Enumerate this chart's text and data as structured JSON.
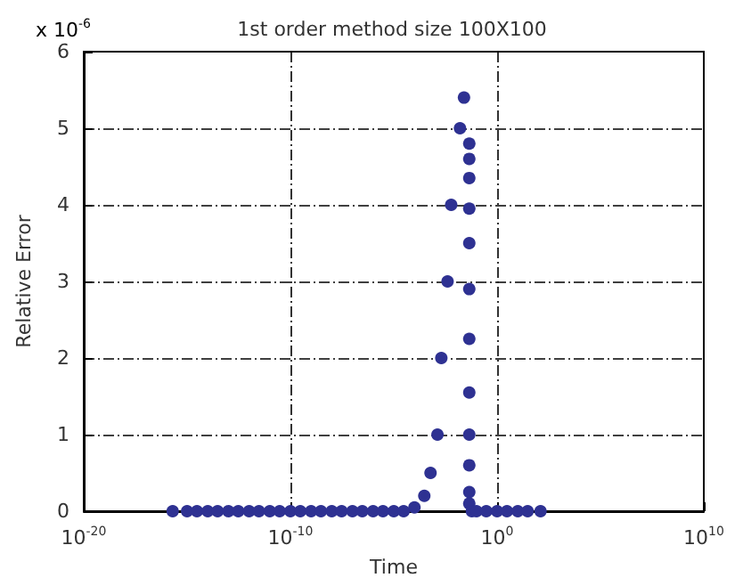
{
  "chart_data": {
    "type": "scatter",
    "title": "1st order method size 100X100",
    "xlabel": "Time",
    "ylabel": "Relative Error",
    "annotations": [
      "x 10$^{-6}$"
    ],
    "log": "x",
    "grid": true,
    "marker": "circle",
    "xlim": [
      1e-20,
      10000000000.0
    ],
    "xticks": [
      {
        "value": 1e-20,
        "label": "10$^{-20}$"
      },
      {
        "value": 1e-10,
        "label": "10$^{-10}$"
      },
      {
        "value": 1,
        "label": "10$^{0}$"
      },
      {
        "value": 10000000000.0,
        "label": "10$^{10}$"
      }
    ],
    "ylim": [
      0,
      6
    ],
    "yticks": [
      0,
      1,
      2,
      3,
      4,
      5,
      6
    ],
    "series": [
      {
        "color": "#2e3192",
        "x": [
          2e-16,
          1e-15,
          3e-15,
          1e-14,
          3e-14,
          1e-13,
          3e-13,
          1e-12,
          3e-12,
          1e-11,
          3e-11,
          1e-10,
          3e-10,
          1e-09,
          3e-09,
          1e-08,
          3e-08,
          1e-07,
          3e-07,
          1e-06,
          3e-06,
          1e-05,
          3e-05,
          0.0001,
          0.0003,
          0.0006,
          0.0013,
          0.002,
          0.004,
          0.006,
          0.016,
          0.025,
          0.045,
          0.045,
          0.045,
          0.045,
          0.045,
          0.045,
          0.045,
          0.045,
          0.045,
          0.045,
          0.045,
          0.045,
          0.06,
          0.1,
          0.3,
          1,
          3,
          10,
          30,
          126
        ],
        "values": [
          0,
          0,
          0,
          0,
          0,
          0,
          0,
          0,
          0,
          0,
          0,
          0,
          0,
          0,
          0,
          0,
          0,
          0,
          0,
          0,
          0,
          0,
          0,
          0.05,
          0.2,
          0.5,
          1,
          2,
          3,
          4,
          5,
          5.4,
          4.8,
          4.6,
          4.35,
          3.95,
          3.5,
          2.9,
          2.25,
          1.55,
          1,
          0.6,
          0.25,
          0.1,
          0,
          0,
          0,
          0,
          0,
          0,
          0,
          0
        ]
      }
    ]
  }
}
